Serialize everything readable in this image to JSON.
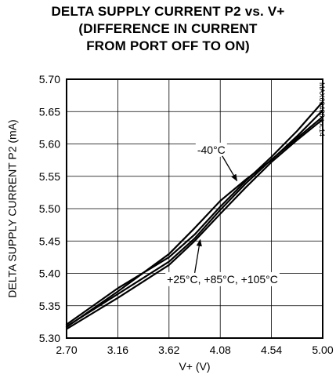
{
  "chart_data": {
    "type": "line",
    "title_lines": [
      "DELTA SUPPLY CURRENT P2 vs. V+",
      "(DIFFERENCE IN CURRENT",
      "FROM PORT OFF TO ON)"
    ],
    "xlabel": "V+ (V)",
    "ylabel": "DELTA SUPPLY CURRENT P2 (mA)",
    "xlim": [
      2.7,
      5.0
    ],
    "ylim": [
      5.3,
      5.7
    ],
    "x_ticks": [
      "2.70",
      "3.16",
      "3.62",
      "4.08",
      "4.54",
      "5.00"
    ],
    "y_ticks": [
      "5.30",
      "5.35",
      "5.40",
      "5.45",
      "5.50",
      "5.55",
      "5.60",
      "5.65",
      "5.70"
    ],
    "grid": true,
    "series": [
      {
        "values": [
          [
            2.7,
            5.317
          ],
          [
            3.16,
            5.372
          ],
          [
            3.62,
            5.43
          ],
          [
            3.85,
            5.47
          ],
          [
            4.08,
            5.512
          ],
          [
            4.31,
            5.545
          ],
          [
            4.54,
            5.575
          ],
          [
            4.77,
            5.612
          ],
          [
            5.0,
            5.652
          ]
        ]
      },
      {
        "values": [
          [
            2.7,
            5.314
          ],
          [
            3.16,
            5.362
          ],
          [
            3.62,
            5.413
          ],
          [
            3.85,
            5.45
          ],
          [
            4.08,
            5.492
          ],
          [
            4.31,
            5.533
          ],
          [
            4.54,
            5.572
          ],
          [
            4.77,
            5.606
          ],
          [
            5.0,
            5.638
          ]
        ]
      },
      {
        "values": [
          [
            2.7,
            5.318
          ],
          [
            3.16,
            5.368
          ],
          [
            3.62,
            5.418
          ],
          [
            3.85,
            5.454
          ],
          [
            4.08,
            5.498
          ],
          [
            4.31,
            5.539
          ],
          [
            4.54,
            5.576
          ],
          [
            4.77,
            5.609
          ],
          [
            5.0,
            5.642
          ]
        ]
      },
      {
        "values": [
          [
            2.7,
            5.321
          ],
          [
            3.16,
            5.377
          ],
          [
            3.62,
            5.425
          ],
          [
            3.85,
            5.46
          ],
          [
            4.08,
            5.503
          ],
          [
            4.31,
            5.543
          ],
          [
            4.54,
            5.58
          ],
          [
            4.77,
            5.62
          ],
          [
            5.0,
            5.665
          ]
        ]
      }
    ],
    "annotations": [
      {
        "text": "-40°C",
        "x": 4.0,
        "y": 5.585,
        "arrow_to": [
          4.23,
          5.543
        ]
      },
      {
        "text": "+25°C, +85°C, +105°C",
        "x": 4.1,
        "y": 5.385,
        "arrow_to": [
          3.9,
          5.452
        ]
      }
    ],
    "part_code": "MAX69488 toc14"
  }
}
